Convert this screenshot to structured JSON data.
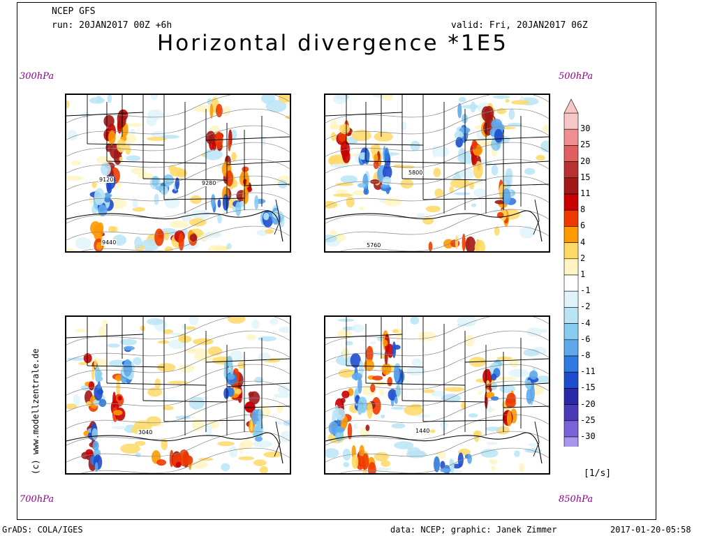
{
  "header": {
    "model": "NCEP GFS",
    "run": "run: 20JAN2017 00Z +6h",
    "valid": "valid: Fri, 20JAN2017 06Z",
    "title": "Horizontal divergence *1E5"
  },
  "panels": [
    {
      "level": "300hPa",
      "contours": [
        "9120",
        "9280",
        "9440"
      ]
    },
    {
      "level": "500hPa",
      "contours": [
        "5800",
        "5760"
      ]
    },
    {
      "level": "700hPa",
      "contours": [
        "3040"
      ]
    },
    {
      "level": "850hPa",
      "contours": [
        "1440"
      ]
    }
  ],
  "colorbar": {
    "labels": [
      "30",
      "25",
      "20",
      "15",
      "11",
      "8",
      "6",
      "4",
      "2",
      "1",
      "-1",
      "-2",
      "-4",
      "-6",
      "-8",
      "-11",
      "-15",
      "-20",
      "-25",
      "-30"
    ],
    "colors": [
      "#f7c6c6",
      "#f08f8f",
      "#e06060",
      "#b83030",
      "#a01818",
      "#c80000",
      "#ee3a00",
      "#ff9900",
      "#ffd966",
      "#fff4c2",
      "#ffffff",
      "#e0f3fb",
      "#b8e4f6",
      "#88cdf0",
      "#5fa8ec",
      "#2f7ae0",
      "#1e4ccc",
      "#2a2aa8",
      "#4a3ab8",
      "#7a62d8",
      "#a896ee"
    ],
    "unit": "[1/s]"
  },
  "watermark": "(c) www.modellzentrale.de",
  "footer": {
    "left": "GrADS: COLA/IGES",
    "center": "data: NCEP; graphic: Janek Zimmer",
    "right": "2017-01-20-05:58"
  }
}
